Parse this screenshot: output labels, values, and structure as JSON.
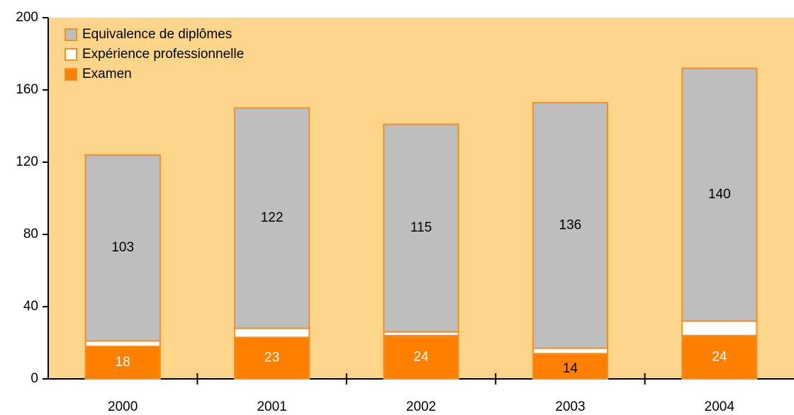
{
  "chart_data": {
    "type": "stacked_bar",
    "categories": [
      "2000",
      "2001",
      "2002",
      "2003",
      "2004"
    ],
    "series": [
      {
        "name": "Examen",
        "color": "#ff8000",
        "values": [
          18,
          23,
          24,
          14,
          24
        ],
        "data_labels": true
      },
      {
        "name": "Expérience professionnelle",
        "color": "#ffffff",
        "values": [
          3,
          5,
          2,
          3,
          8
        ],
        "data_labels": false
      },
      {
        "name": "Equivalence de diplômes",
        "color": "#bebebe",
        "values": [
          103,
          122,
          115,
          136,
          140
        ],
        "data_labels": true
      }
    ],
    "ylim": [
      0,
      200
    ],
    "yticks": [
      0,
      40,
      80,
      120,
      160,
      200
    ],
    "legend": "upper left",
    "background": "#fdd58a",
    "outline": "#f0902a"
  }
}
